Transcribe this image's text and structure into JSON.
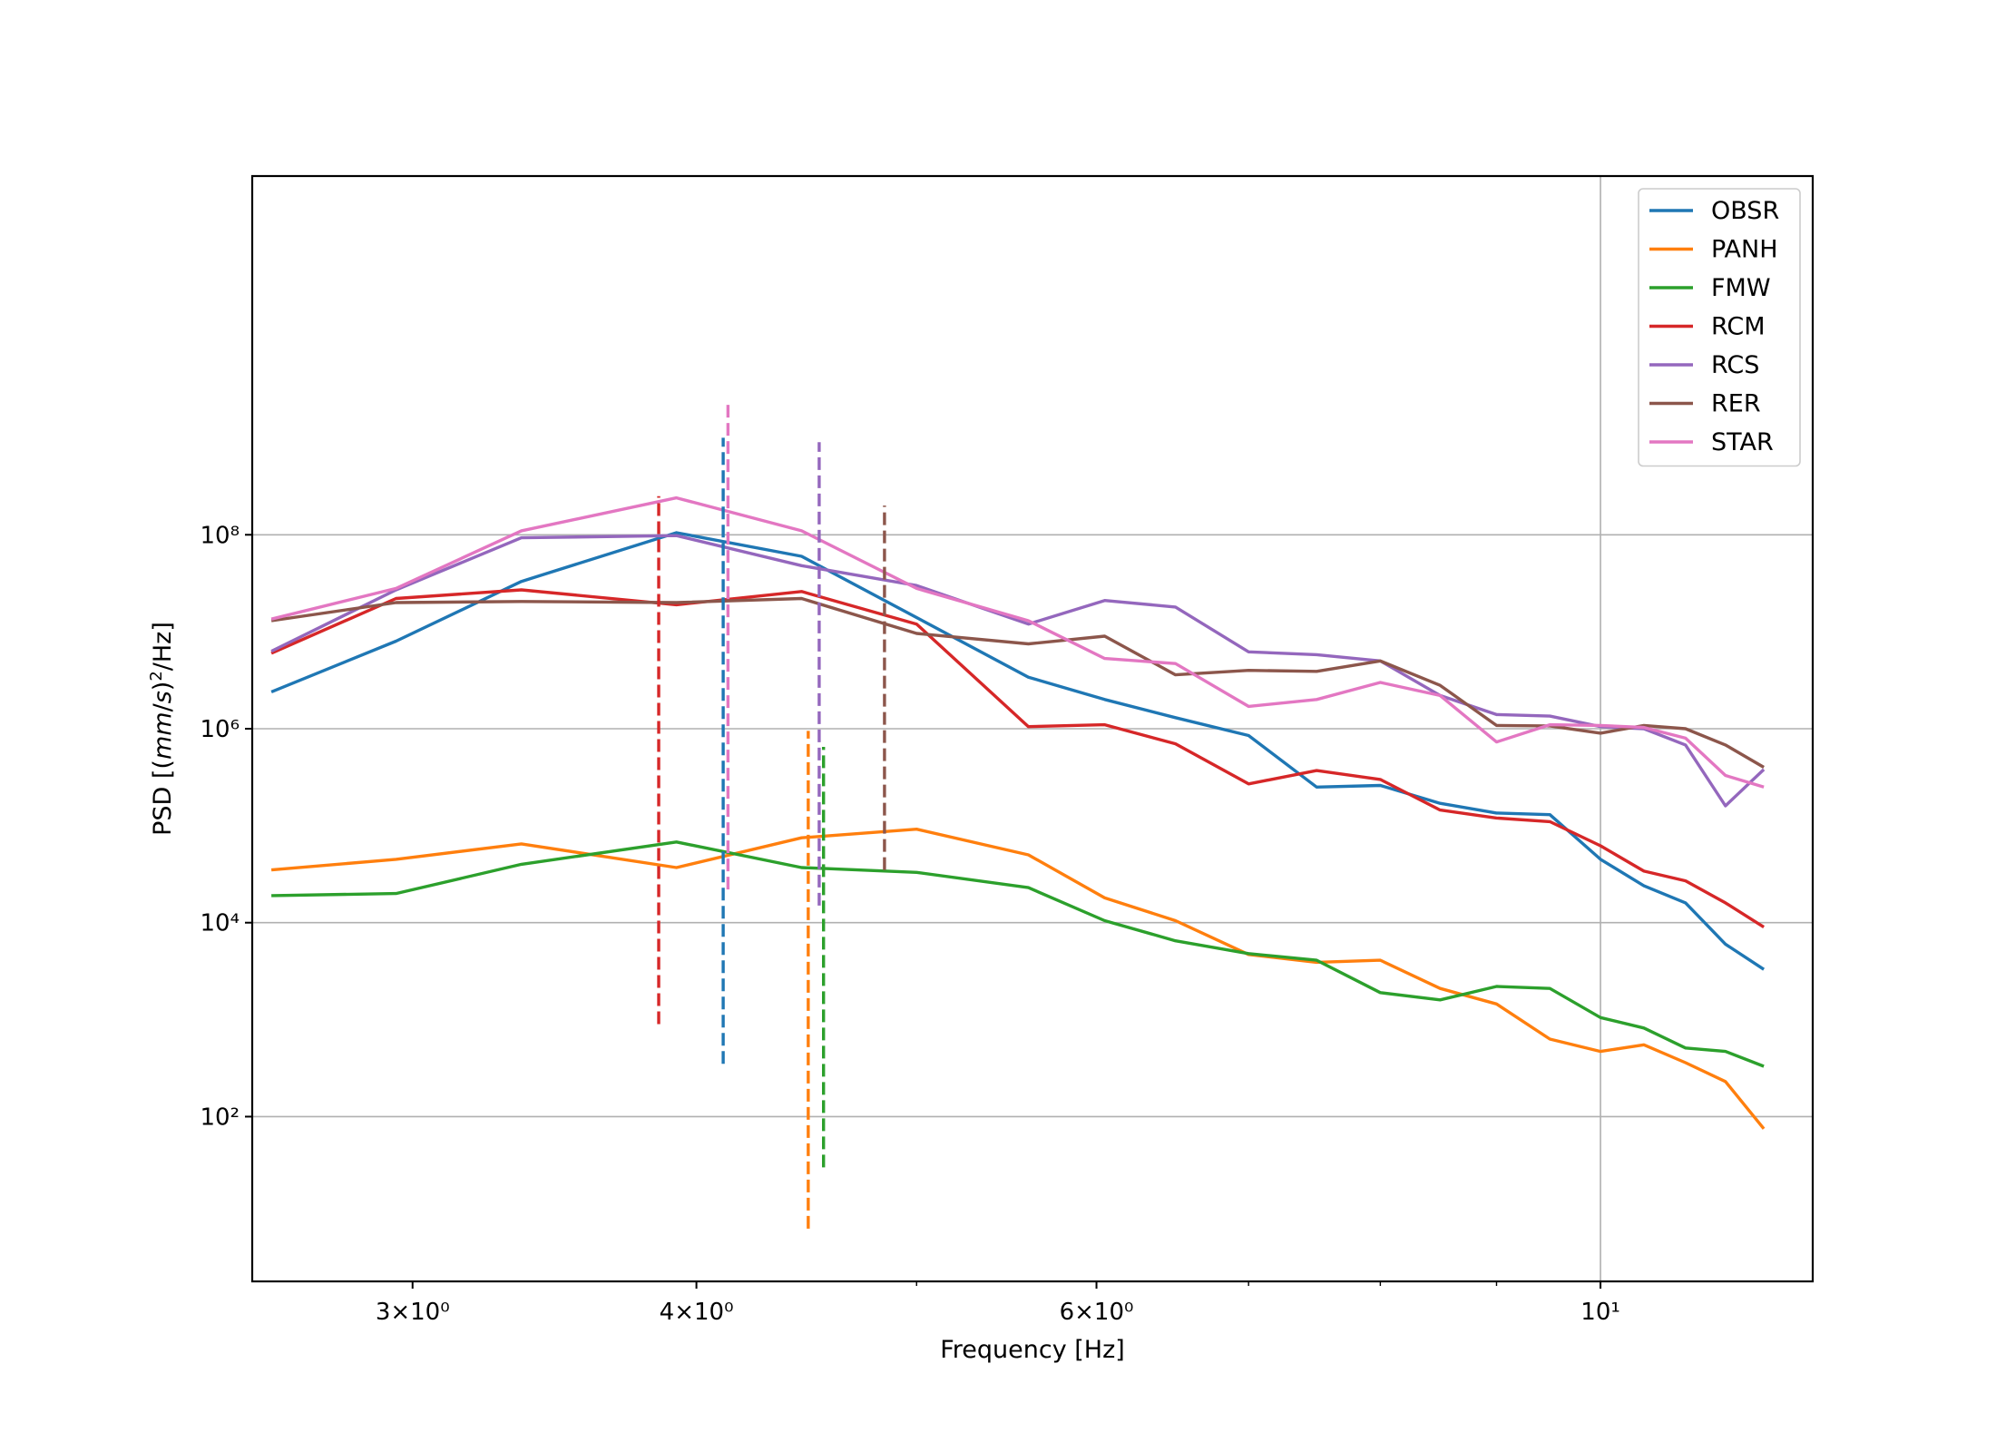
{
  "chart_data": {
    "type": "line",
    "title": "",
    "xlabel": "Frequency [Hz]",
    "ylabel": "PSD [(mm/s)²/Hz]",
    "x_scale": "log",
    "y_scale": "log",
    "xlim": [
      2.55,
      12.4
    ],
    "ylim": [
      2.0,
      500000000000
    ],
    "grid": true,
    "legend_position": "top-right",
    "x_ticks": [
      {
        "value": 3,
        "label": "3×10⁰"
      },
      {
        "value": 4,
        "label": "4×10⁰"
      },
      {
        "value": 6,
        "label": "6×10⁰"
      },
      {
        "value": 10,
        "label": "10¹"
      }
    ],
    "x_minor_ticks": [
      5,
      7,
      8,
      9
    ],
    "x_gridlines": [
      10
    ],
    "y_ticks": [
      {
        "value": 100,
        "label": "10²"
      },
      {
        "value": 10000,
        "label": "10⁴"
      },
      {
        "value": 1000000,
        "label": "10⁶"
      },
      {
        "value": 100000000,
        "label": "10⁸"
      }
    ],
    "x": [
      2.6,
      2.95,
      3.35,
      3.92,
      4.45,
      5.0,
      5.6,
      6.05,
      6.5,
      7.0,
      7.5,
      8.0,
      8.5,
      9.0,
      9.5,
      10.0,
      10.45,
      10.9,
      11.35,
      11.8
    ],
    "series": [
      {
        "name": "OBSR",
        "color": "#1f77b4",
        "values": [
          2400000,
          8000000,
          33000000,
          105000000,
          60000000,
          14000000,
          3400000,
          2000000,
          1300000,
          850000,
          250000,
          260000,
          170000,
          135000,
          130000,
          45000,
          24000,
          16000,
          6000,
          3300
        ]
      },
      {
        "name": "PANH",
        "color": "#ff7f0e",
        "values": [
          35000,
          45000,
          65000,
          37000,
          75000,
          92000,
          50000,
          18000,
          10500,
          4700,
          3900,
          4100,
          2100,
          1450,
          630,
          470,
          550,
          360,
          230,
          75
        ]
      },
      {
        "name": "FMW",
        "color": "#2ca02c",
        "values": [
          19000,
          20000,
          40000,
          68000,
          37000,
          33000,
          23000,
          10500,
          6500,
          4800,
          4100,
          1900,
          1600,
          2200,
          2100,
          1050,
          820,
          510,
          470,
          330
        ]
      },
      {
        "name": "RCM",
        "color": "#d62728",
        "values": [
          6000000,
          22000000,
          27000000,
          19000000,
          26000000,
          12000000,
          1050000,
          1100000,
          700000,
          270000,
          370000,
          300000,
          145000,
          120000,
          110000,
          62000,
          34000,
          27000,
          16000,
          9000
        ]
      },
      {
        "name": "RCS",
        "color": "#9467bd",
        "values": [
          6300000,
          27000000,
          93000000,
          98000000,
          48000000,
          30000000,
          12000000,
          21000000,
          18000000,
          6200000,
          5800000,
          5000000,
          2200000,
          1400000,
          1350000,
          1050000,
          1000000,
          680000,
          160000,
          380000
        ]
      },
      {
        "name": "RER",
        "color": "#8c564b",
        "values": [
          13000000,
          20000000,
          20500000,
          20000000,
          22000000,
          9600000,
          7500000,
          9000000,
          3600000,
          4000000,
          3900000,
          5000000,
          2800000,
          1080000,
          1070000,
          900000,
          1080000,
          1000000,
          680000,
          400000
        ]
      },
      {
        "name": "STAR",
        "color": "#e377c2",
        "values": [
          13500000,
          28000000,
          110000000,
          240000000,
          110000000,
          28000000,
          13000000,
          5300000,
          4700000,
          1700000,
          2000000,
          3000000,
          2200000,
          730000,
          1100000,
          1080000,
          1030000,
          800000,
          330000,
          250000
        ]
      }
    ],
    "vertical_markers": [
      {
        "series": "RCM",
        "x": 3.85,
        "ymin": 900,
        "ymax": 250000000
      },
      {
        "series": "OBSR",
        "x": 4.11,
        "ymin": 350,
        "ymax": 1000000000
      },
      {
        "series": "STAR",
        "x": 4.13,
        "ymin": 22000,
        "ymax": 2200000000
      },
      {
        "series": "PANH",
        "x": 4.48,
        "ymin": 7,
        "ymax": 950000
      },
      {
        "series": "FMW",
        "x": 4.55,
        "ymin": 30,
        "ymax": 650000
      },
      {
        "series": "RCS",
        "x": 4.53,
        "ymin": 15000,
        "ymax": 900000000
      },
      {
        "series": "RER",
        "x": 4.84,
        "ymin": 35000,
        "ymax": 200000000
      }
    ]
  }
}
